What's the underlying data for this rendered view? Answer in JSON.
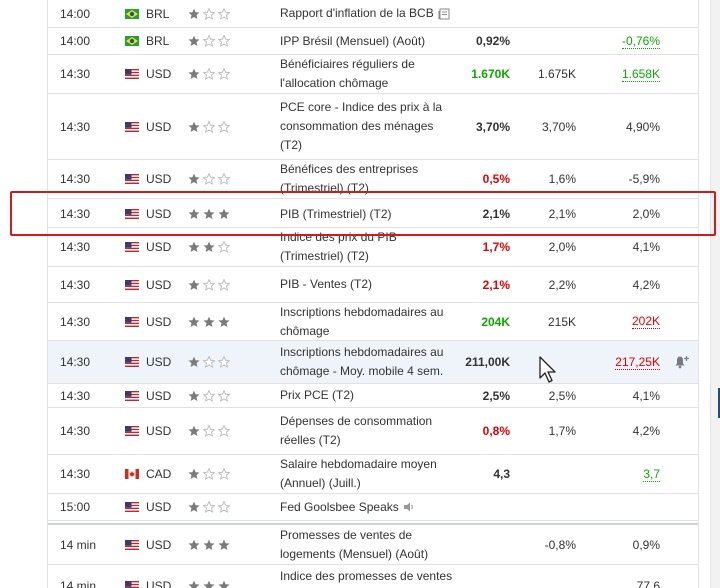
{
  "rows": [
    {
      "time": "14:00",
      "flag": "br",
      "currency": "BRL",
      "stars": 1,
      "event": "Rapport d'inflation de la BCB",
      "event_icon": "report-icon",
      "actual": "",
      "forecast": "",
      "previous": ""
    },
    {
      "time": "14:00",
      "flag": "br",
      "currency": "BRL",
      "stars": 1,
      "event": "IPP Brésil (Mensuel) (Août)",
      "actual": "0,92%",
      "forecast": "",
      "previous": "-0,76%",
      "previous_style": "under-green"
    },
    {
      "time": "14:30",
      "flag": "us",
      "currency": "USD",
      "stars": 1,
      "event": "Bénéficiaires réguliers de l'allocation chômage",
      "actual": "1.670K",
      "actual_style": "green",
      "forecast": "1.675K",
      "previous": "1.658K",
      "previous_style": "under-green"
    },
    {
      "time": "14:30",
      "flag": "us",
      "currency": "USD",
      "stars": 1,
      "event": "PCE core - Indice des prix à la consommation des ménages (T2)",
      "actual": "3,70%",
      "forecast": "3,70%",
      "previous": "4,90%"
    },
    {
      "time": "14:30",
      "flag": "us",
      "currency": "USD",
      "stars": 1,
      "event": "Bénéfices des entreprises (Trimestriel) (T2)",
      "actual": "0,5%",
      "actual_style": "red",
      "forecast": "1,6%",
      "previous": "-5,9%"
    },
    {
      "time": "14:30",
      "flag": "us",
      "currency": "USD",
      "stars": 3,
      "event": "PIB (Trimestriel) (T2)",
      "actual": "2,1%",
      "forecast": "2,1%",
      "previous": "2,0%"
    },
    {
      "time": "14:30",
      "flag": "us",
      "currency": "USD",
      "stars": 2,
      "event": "Indice des prix du PIB (Trimestriel) (T2)",
      "actual": "1,7%",
      "actual_style": "red",
      "forecast": "2,0%",
      "previous": "4,1%"
    },
    {
      "time": "14:30",
      "flag": "us",
      "currency": "USD",
      "stars": 1,
      "event": "PIB - Ventes (T2)",
      "actual": "2,1%",
      "actual_style": "red",
      "forecast": "2,2%",
      "previous": "4,2%"
    },
    {
      "time": "14:30",
      "flag": "us",
      "currency": "USD",
      "stars": 3,
      "event": "Inscriptions hebdomadaires au chômage",
      "actual": "204K",
      "actual_style": "green",
      "forecast": "215K",
      "previous": "202K",
      "previous_style": "under-red"
    },
    {
      "time": "14:30",
      "flag": "us",
      "currency": "USD",
      "stars": 1,
      "event": "Inscriptions hebdomadaires au chômage - Moy. mobile 4 sem.",
      "actual": "211,00K",
      "forecast": "",
      "previous": "217,25K",
      "previous_style": "under-red",
      "alert": true
    },
    {
      "time": "14:30",
      "flag": "us",
      "currency": "USD",
      "stars": 1,
      "event": "Prix PCE (T2)",
      "actual": "2,5%",
      "forecast": "2,5%",
      "previous": "4,1%"
    },
    {
      "time": "14:30",
      "flag": "us",
      "currency": "USD",
      "stars": 1,
      "event": "Dépenses de consommation réelles (T2)",
      "actual": "0,8%",
      "actual_style": "red",
      "forecast": "1,7%",
      "previous": "4,2%"
    },
    {
      "time": "14:30",
      "flag": "ca",
      "currency": "CAD",
      "stars": 1,
      "event": "Salaire hebdomadaire moyen (Annuel) (Juill.)",
      "actual": "4,3",
      "forecast": "",
      "previous": "3,7",
      "previous_style": "under-green"
    },
    {
      "time": "15:00",
      "flag": "us",
      "currency": "USD",
      "stars": 1,
      "event": "Fed Goolsbee Speaks",
      "event_icon": "speaker-icon",
      "actual": "",
      "forecast": "",
      "previous": ""
    },
    {
      "time": "14 min",
      "flag": "us",
      "currency": "USD",
      "stars": 3,
      "event": "Promesses de ventes de logements (Mensuel) (Août)",
      "actual": "",
      "forecast": "-0,8%",
      "previous": "0,9%"
    },
    {
      "time": "14 min",
      "flag": "us",
      "currency": "USD",
      "stars": 3,
      "event": "Indice des promesses de ventes de logements (Août)",
      "actual": "",
      "forecast": "",
      "previous": "77,6"
    }
  ]
}
